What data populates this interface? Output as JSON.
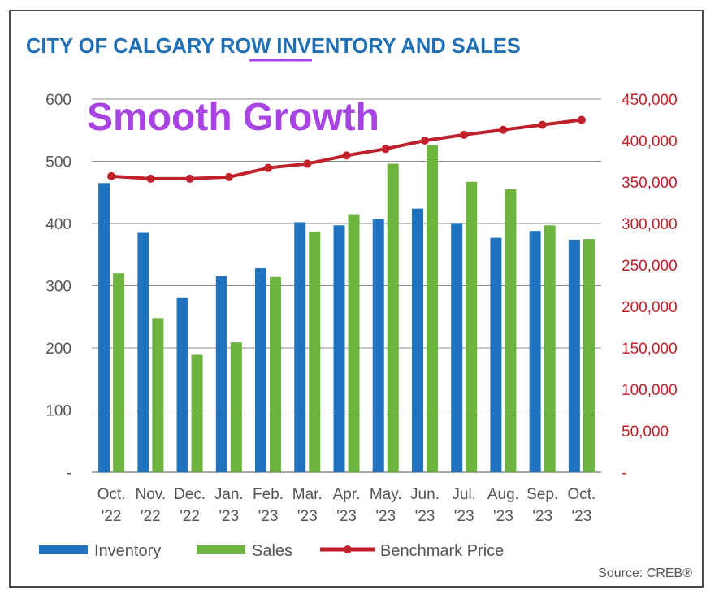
{
  "chart_data": {
    "type": "bar",
    "title_parts": [
      "CITY OF CALGARY ",
      "ROW",
      " INVENTORY AND SALES"
    ],
    "annotation": "Smooth Growth",
    "categories": [
      [
        "Oct.",
        "'22"
      ],
      [
        "Nov.",
        "'22"
      ],
      [
        "Dec.",
        "'22"
      ],
      [
        "Jan.",
        "'23"
      ],
      [
        "Feb.",
        "'23"
      ],
      [
        "Mar.",
        "'23"
      ],
      [
        "Apr.",
        "'23"
      ],
      [
        "May.",
        "'23"
      ],
      [
        "Jun.",
        "'23"
      ],
      [
        "Jul.",
        "'23"
      ],
      [
        "Aug.",
        "'23"
      ],
      [
        "Sep.",
        "'23"
      ],
      [
        "Oct.",
        "'23"
      ]
    ],
    "series": [
      {
        "name": "Inventory",
        "type": "bar",
        "axis": "left",
        "color": "#1f73bf",
        "values": [
          465,
          385,
          280,
          315,
          328,
          402,
          397,
          407,
          424,
          401,
          377,
          388,
          374
        ]
      },
      {
        "name": "Sales",
        "type": "bar",
        "axis": "left",
        "color": "#6cb33f",
        "values": [
          320,
          248,
          189,
          209,
          314,
          387,
          415,
          496,
          526,
          467,
          455,
          397,
          375
        ]
      },
      {
        "name": "Benchmark Price",
        "type": "line",
        "axis": "right",
        "color": "#c0202a",
        "values": [
          357000,
          354000,
          354000,
          356000,
          367000,
          372000,
          382000,
          390000,
          400000,
          407000,
          413000,
          419000,
          425000
        ]
      }
    ],
    "y_left": {
      "range": [
        0,
        600
      ],
      "ticks": [
        "-",
        "100",
        "200",
        "300",
        "400",
        "500",
        "600"
      ]
    },
    "y_right": {
      "range": [
        0,
        450000
      ],
      "ticks": [
        "-",
        "50,000",
        "100,000",
        "150,000",
        "200,000",
        "250,000",
        "300,000",
        "350,000",
        "400,000",
        "450,000"
      ]
    },
    "grid": true,
    "legend_position": "bottom-left",
    "source": "Source: CREB®"
  },
  "colors": {
    "title": "#1f6fb2",
    "title_underline": "#a844e4",
    "annotation": "#a844e4",
    "right_axis": "#c0202a",
    "grid": "#8c8c8c"
  }
}
